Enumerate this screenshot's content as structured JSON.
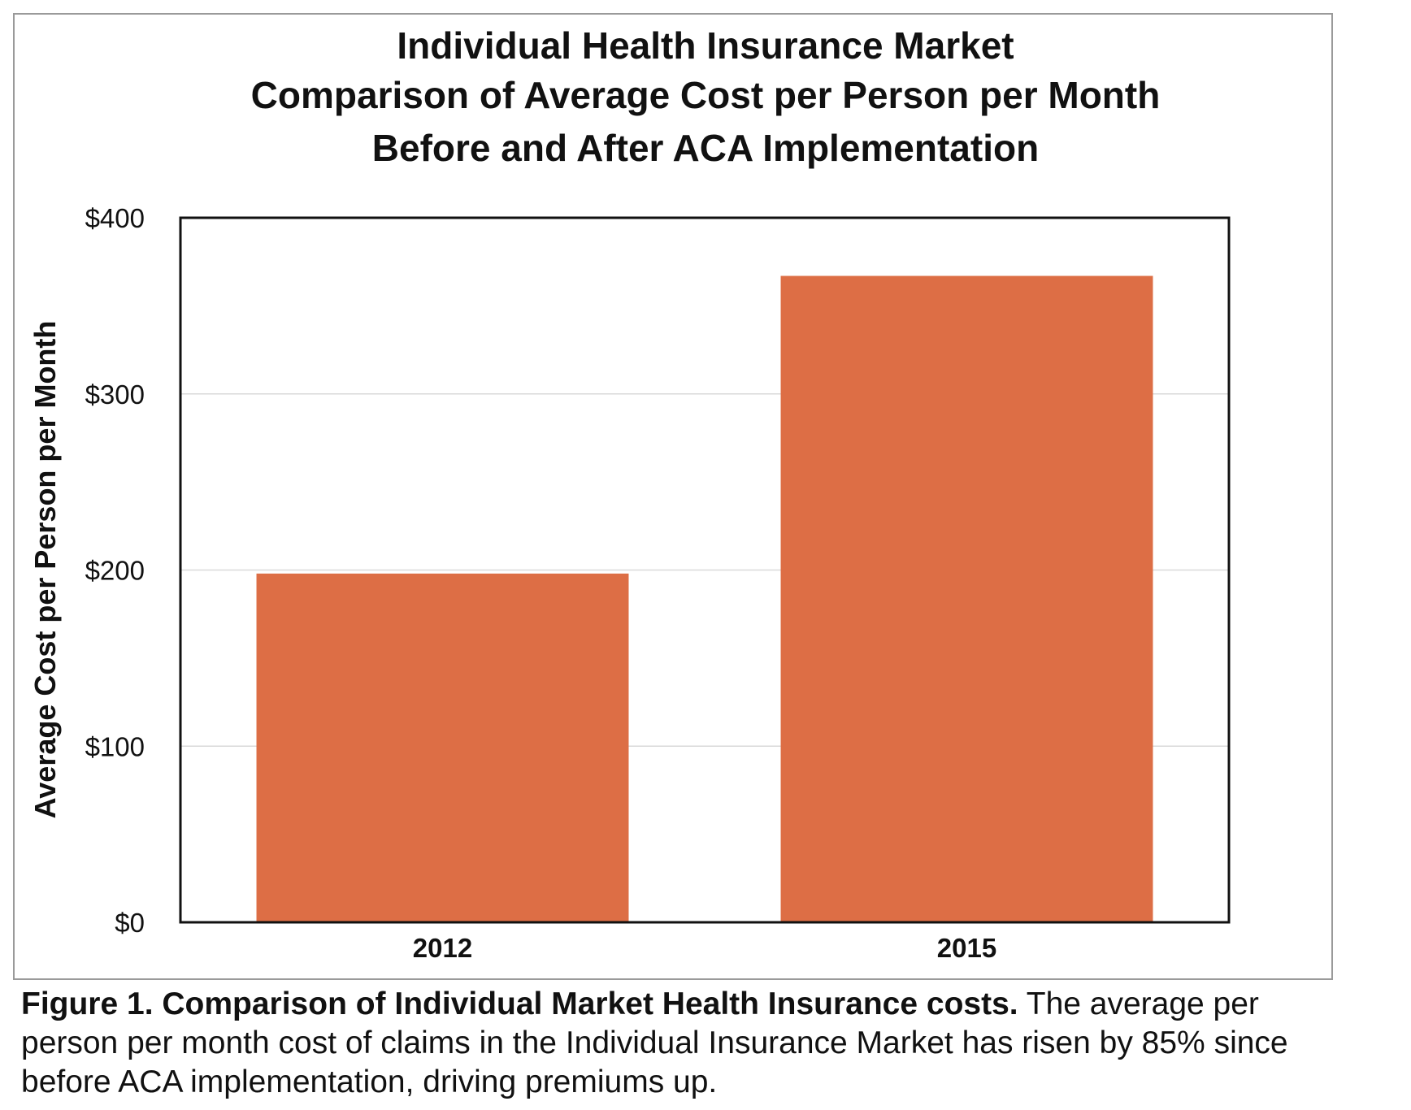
{
  "chart_data": {
    "type": "bar",
    "title_lines": [
      "Individual Health Insurance Market",
      "Comparison of Average Cost per Person per Month",
      "Before and After ACA Implementation"
    ],
    "xlabel": "",
    "ylabel": "Average Cost per Person per Month",
    "categories": [
      "2012",
      "2015"
    ],
    "values": [
      198,
      367
    ],
    "ylim": [
      0,
      400
    ],
    "yticks": [
      0,
      100,
      200,
      300,
      400
    ],
    "ytick_labels": [
      "$0",
      "$100",
      "$200",
      "$300",
      "$400"
    ],
    "grid": true,
    "bar_color": "#dd6e45"
  },
  "caption": {
    "bold": "Figure 1. Comparison of Individual Market Health Insurance costs.",
    "text": " The average per person per month cost of claims in the Individual Insurance Market has risen by 85% since before ACA implementation, driving premiums up."
  }
}
